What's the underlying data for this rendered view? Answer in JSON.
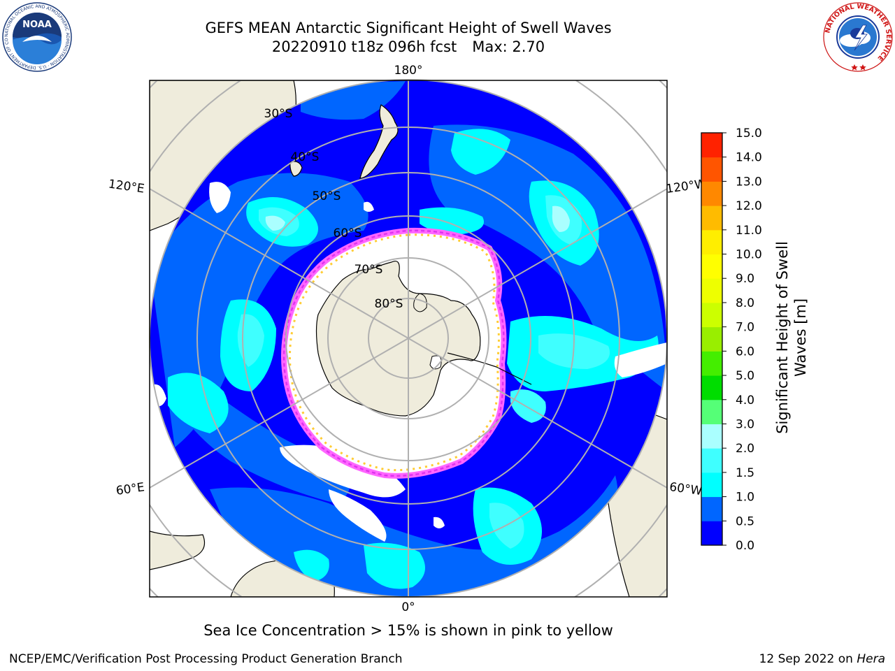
{
  "title": {
    "line1": "GEFS MEAN Antarctic Significant Height of Swell Waves",
    "line2_run": "20220910 t18z 096h fcst",
    "line2_max": "Max: 2.70"
  },
  "logos": {
    "noaa": {
      "text": "NOAA",
      "ring_text": "NATIONAL OCEANIC AND ATMOSPHERIC ADMINISTRATION · U.S. DEPARTMENT OF COMMERCE"
    },
    "nws": {
      "ring_text": "NATIONAL WEATHER SERVICE"
    }
  },
  "map": {
    "projection": "south-polar-stereographic",
    "lon_labels": {
      "top": "180°",
      "bottom": "0°",
      "upper_left": "120°E",
      "upper_right": "120°W",
      "lower_left": "60°E",
      "lower_right": "60°W"
    },
    "lat_labels": [
      "30°S",
      "40°S",
      "50°S",
      "60°S",
      "70°S",
      "80°S"
    ],
    "colors": {
      "land": "#efecdc",
      "ocean_0_0p5": "#0000ff",
      "ocean_0p5_1": "#0066ff",
      "ocean_1_1p5": "#00ffff",
      "ocean_1p5_2": "#3fffff",
      "ocean_2_3": "#aaffff",
      "ice_edge_pink": "#ff66ff",
      "ice_edge_magenta": "#dd33ee",
      "ice_edge_yellow": "#ffcc33",
      "grid": "#b0b0b0"
    }
  },
  "colorbar": {
    "label": "Significant Height of Swell Waves [m]",
    "ticks": [
      "0.0",
      "0.5",
      "1.0",
      "1.5",
      "2.0",
      "3.0",
      "4.0",
      "5.0",
      "6.0",
      "7.0",
      "8.0",
      "9.0",
      "10.0",
      "11.0",
      "12.0",
      "13.0",
      "14.0",
      "15.0"
    ],
    "colors": [
      "#0000ff",
      "#0066ff",
      "#00ffff",
      "#3fffff",
      "#aaffff",
      "#55ff77",
      "#00dd00",
      "#44ee00",
      "#99ee00",
      "#ccff00",
      "#eeff00",
      "#ffff00",
      "#ffee00",
      "#ffbb00",
      "#ff8800",
      "#ff5500",
      "#ff2200"
    ]
  },
  "caption": "Sea Ice Concentration > 15% is shown in pink to yellow",
  "footer": {
    "left": "NCEP/EMC/Verification Post Processing Product Generation Branch",
    "right_prefix": "12 Sep 2022 on",
    "right_host": "Hera"
  }
}
